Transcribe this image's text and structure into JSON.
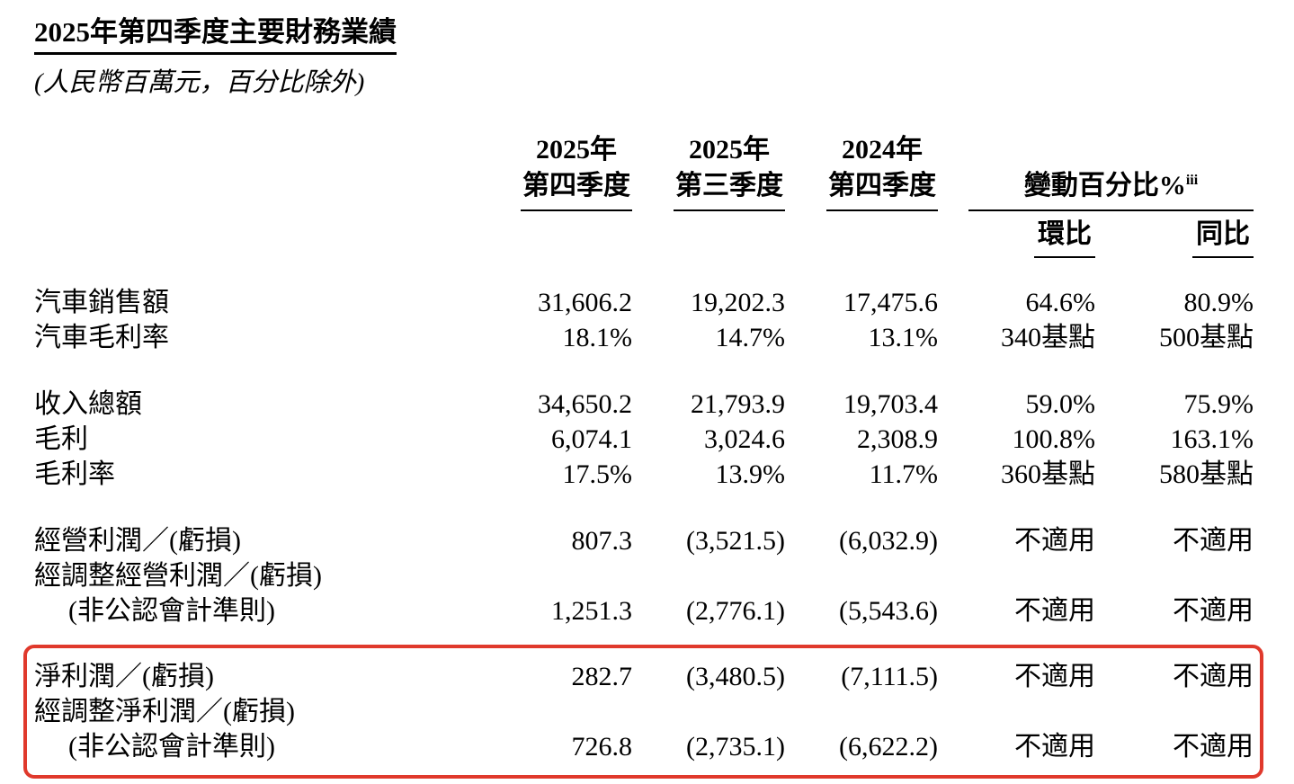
{
  "page": {
    "title": "2025年第四季度主要財務業績",
    "subtitle": "(人民幣百萬元，百分比除外)"
  },
  "table": {
    "period_headers": [
      {
        "line1": "2025年",
        "line2": "第四季度"
      },
      {
        "line1": "2025年",
        "line2": "第三季度"
      },
      {
        "line1": "2024年",
        "line2": "第四季度"
      }
    ],
    "change_header": {
      "label": "變動百分比%",
      "footnote": "iii"
    },
    "subheaders": {
      "qoq": "環比",
      "yoy": "同比"
    },
    "highlight_color": "#e0392c",
    "rows": [
      {
        "label": "汽車銷售額",
        "q4_2025": "31,606.2",
        "q3_2025": "19,202.3",
        "q4_2024": "17,475.6",
        "qoq": "64.6%",
        "yoy": "80.9%"
      },
      {
        "label": "汽車毛利率",
        "q4_2025": "18.1%",
        "q3_2025": "14.7%",
        "q4_2024": "13.1%",
        "qoq": "340基點",
        "yoy": "500基點"
      },
      {
        "label": "收入總額",
        "q4_2025": "34,650.2",
        "q3_2025": "21,793.9",
        "q4_2024": "19,703.4",
        "qoq": "59.0%",
        "yoy": "75.9%"
      },
      {
        "label": "毛利",
        "q4_2025": "6,074.1",
        "q3_2025": "3,024.6",
        "q4_2024": "2,308.9",
        "qoq": "100.8%",
        "yoy": "163.1%"
      },
      {
        "label": "毛利率",
        "q4_2025": "17.5%",
        "q3_2025": "13.9%",
        "q4_2024": "11.7%",
        "qoq": "360基點",
        "yoy": "580基點"
      },
      {
        "label": "經營利潤／(虧損)",
        "q4_2025": "807.3",
        "q3_2025": "(3,521.5)",
        "q4_2024": "(6,032.9)",
        "qoq": "不適用",
        "yoy": "不適用"
      },
      {
        "label": "經調整經營利潤／(虧損)"
      },
      {
        "label": "(非公認會計準則)",
        "q4_2025": "1,251.3",
        "q3_2025": "(2,776.1)",
        "q4_2024": "(5,543.6)",
        "qoq": "不適用",
        "yoy": "不適用"
      },
      {
        "label": "淨利潤／(虧損)",
        "q4_2025": "282.7",
        "q3_2025": "(3,480.5)",
        "q4_2024": "(7,111.5)",
        "qoq": "不適用",
        "yoy": "不適用"
      },
      {
        "label": "經調整淨利潤／(虧損)"
      },
      {
        "label": "(非公認會計準則)",
        "q4_2025": "726.8",
        "q3_2025": "(2,735.1)",
        "q4_2024": "(6,622.2)",
        "qoq": "不適用",
        "yoy": "不適用"
      }
    ]
  }
}
